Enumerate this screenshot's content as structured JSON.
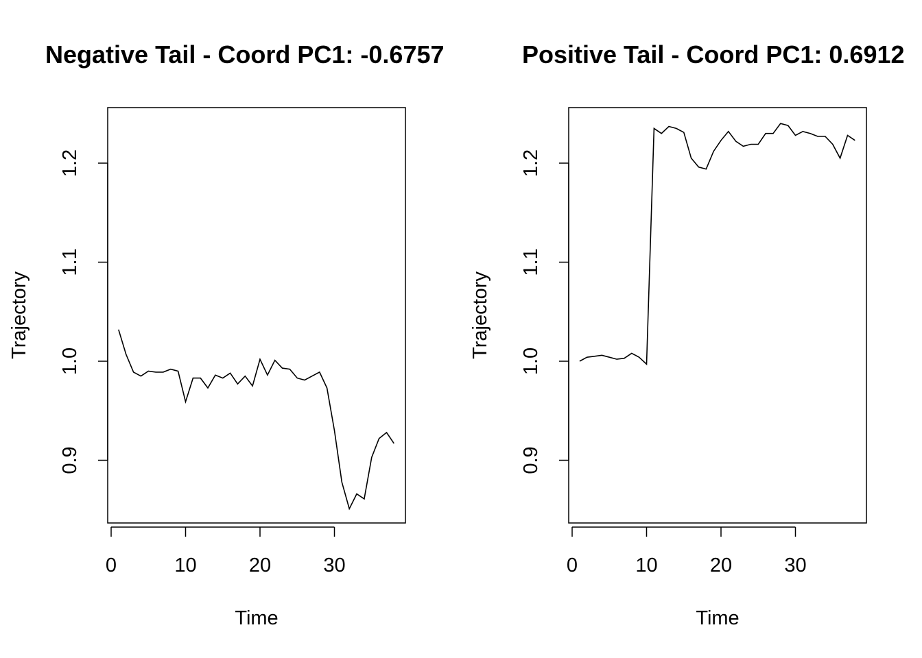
{
  "chart_data": [
    {
      "type": "line",
      "title": "Negative Tail - Coord PC1: -0.6757",
      "xlabel": "Time",
      "ylabel": "Trajectory",
      "xlim": [
        1,
        38
      ],
      "ylim": [
        0.85,
        1.24
      ],
      "xticks": [
        "0",
        "10",
        "20",
        "30"
      ],
      "yticks": [
        "0.9",
        "1.0",
        "1.1",
        "1.2"
      ],
      "grid": false,
      "series": [
        {
          "color": "#000000",
          "x": [
            1,
            2,
            3,
            4,
            5,
            6,
            7,
            8,
            9,
            10,
            11,
            12,
            13,
            14,
            15,
            16,
            17,
            18,
            19,
            20,
            21,
            22,
            23,
            24,
            25,
            26,
            27,
            28,
            29,
            30,
            31,
            32,
            33,
            34,
            35,
            36,
            37,
            38
          ],
          "y": [
            1.032,
            1.007,
            0.989,
            0.985,
            0.99,
            0.989,
            0.989,
            0.992,
            0.99,
            0.959,
            0.983,
            0.983,
            0.973,
            0.986,
            0.983,
            0.988,
            0.977,
            0.985,
            0.975,
            1.002,
            0.986,
            1.001,
            0.993,
            0.992,
            0.983,
            0.981,
            0.985,
            0.989,
            0.973,
            0.93,
            0.878,
            0.851,
            0.866,
            0.861,
            0.903,
            0.922,
            0.928,
            0.917
          ]
        }
      ]
    },
    {
      "type": "line",
      "title": "Positive Tail - Coord PC1: 0.6912",
      "xlabel": "Time",
      "ylabel": "Trajectory",
      "xlim": [
        1,
        38
      ],
      "ylim": [
        0.85,
        1.24
      ],
      "xticks": [
        "0",
        "10",
        "20",
        "30"
      ],
      "yticks": [
        "0.9",
        "1.0",
        "1.1",
        "1.2"
      ],
      "grid": false,
      "series": [
        {
          "color": "#000000",
          "x": [
            1,
            2,
            3,
            4,
            5,
            6,
            7,
            8,
            9,
            10,
            11,
            12,
            13,
            14,
            15,
            16,
            17,
            18,
            19,
            20,
            21,
            22,
            23,
            24,
            25,
            26,
            27,
            28,
            29,
            30,
            31,
            32,
            33,
            34,
            35,
            36,
            37,
            38
          ],
          "y": [
            1.0,
            1.004,
            1.005,
            1.006,
            1.004,
            1.002,
            1.003,
            1.008,
            1.004,
            0.997,
            1.235,
            1.23,
            1.237,
            1.235,
            1.231,
            1.205,
            1.196,
            1.194,
            1.212,
            1.223,
            1.232,
            1.222,
            1.217,
            1.219,
            1.219,
            1.23,
            1.23,
            1.24,
            1.238,
            1.228,
            1.232,
            1.23,
            1.227,
            1.227,
            1.219,
            1.205,
            1.228,
            1.223
          ]
        }
      ]
    }
  ]
}
